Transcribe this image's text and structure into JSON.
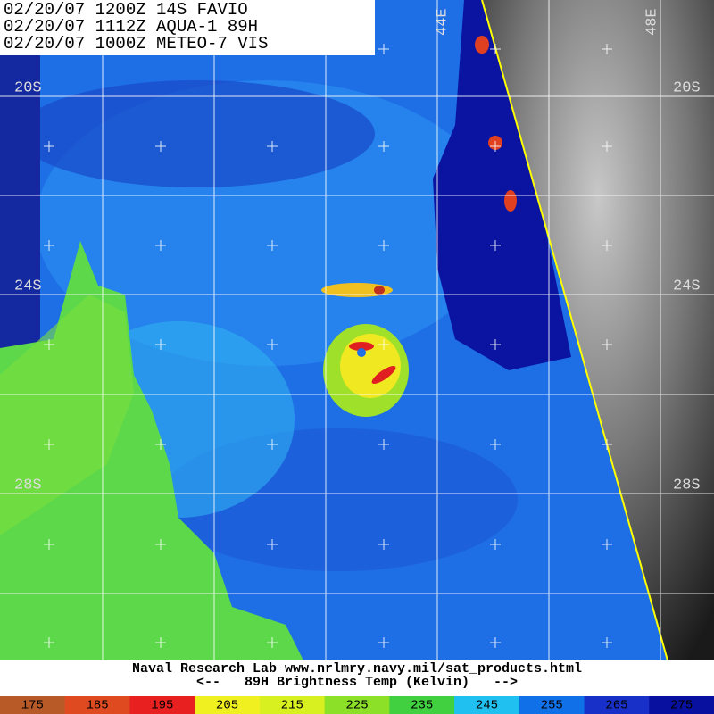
{
  "header": {
    "lines": [
      "02/20/07 1200Z 14S FAVIO",
      "02/20/07 1112Z AQUA-1 89H",
      "02/20/07 1000Z METEO-7 VIS"
    ]
  },
  "latitude_labels": [
    "20S",
    "24S",
    "28S"
  ],
  "longitude_labels": [
    "44E",
    "48E"
  ],
  "footer": {
    "credit": "Naval Research Lab  www.nrlmry.navy.mil/sat_products.html",
    "legend_title": "<--   89H Brightness Temp (Kelvin)   -->"
  },
  "colorbar": {
    "ticks": [
      175,
      185,
      195,
      205,
      215,
      225,
      235,
      245,
      255,
      265,
      275
    ]
  }
}
